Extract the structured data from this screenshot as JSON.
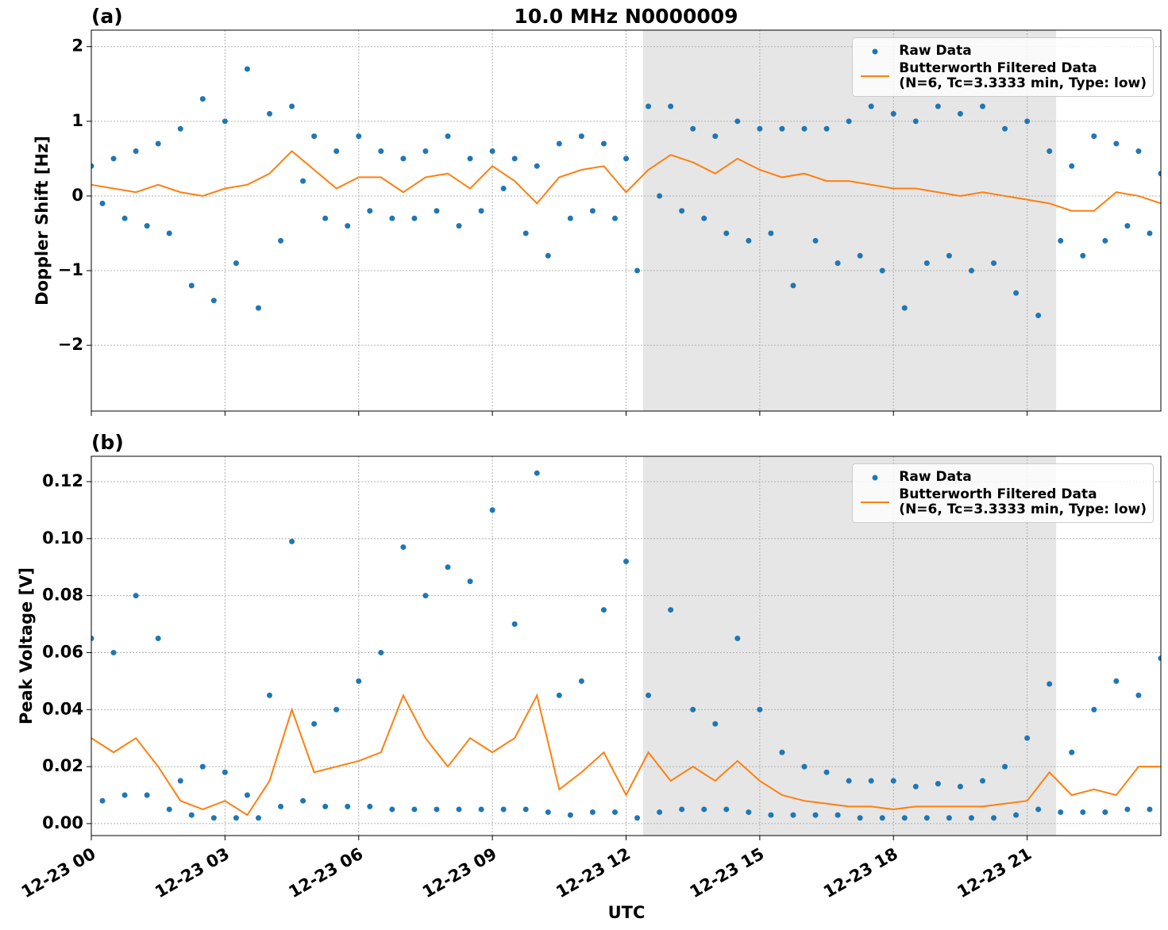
{
  "chart_data": [
    {
      "type": "scatter",
      "panel_label": "(a)",
      "title": "10.0 MHz N0000009",
      "ylabel": "Doppler Shift [Hz]",
      "xlim": [
        0,
        24
      ],
      "xticks": [
        0,
        3,
        6,
        9,
        12,
        15,
        18,
        21
      ],
      "ylim": [
        -2.88,
        2.22
      ],
      "yticks": [
        {
          "value": -2,
          "label": "−2"
        },
        {
          "value": -1,
          "label": "−1"
        },
        {
          "value": 0,
          "label": "0"
        },
        {
          "value": 1,
          "label": "1"
        },
        {
          "value": 2,
          "label": "2"
        }
      ],
      "grid": true,
      "shaded_span": [
        12.38,
        21.65
      ],
      "legend": "upper right",
      "series": [
        {
          "name": "Raw Data",
          "style": "markers",
          "color": "#1f77b4",
          "x": [
            0,
            0.25,
            0.5,
            0.75,
            1,
            1.25,
            1.5,
            1.75,
            2,
            2.25,
            2.5,
            2.75,
            3,
            3.25,
            3.5,
            3.75,
            4,
            4.25,
            4.5,
            4.75,
            5,
            5.25,
            5.5,
            5.75,
            6,
            6.25,
            6.5,
            6.75,
            7,
            7.25,
            7.5,
            7.75,
            8,
            8.25,
            8.5,
            8.75,
            9,
            9.25,
            9.5,
            9.75,
            10,
            10.25,
            10.5,
            10.75,
            11,
            11.25,
            11.5,
            11.75,
            12,
            12.25,
            12.5,
            12.75,
            13,
            13.25,
            13.5,
            13.75,
            14,
            14.25,
            14.5,
            14.75,
            15,
            15.25,
            15.5,
            15.75,
            16,
            16.25,
            16.5,
            16.75,
            17,
            17.25,
            17.5,
            17.75,
            18,
            18.25,
            18.5,
            18.75,
            19,
            19.25,
            19.5,
            19.75,
            20,
            20.25,
            20.5,
            20.75,
            21,
            21.25,
            21.5,
            21.75,
            22,
            22.25,
            22.5,
            22.75,
            23,
            23.25,
            23.5,
            23.75,
            24
          ],
          "values": [
            0.4,
            -0.1,
            0.5,
            -0.3,
            0.6,
            -0.4,
            0.7,
            -0.5,
            0.9,
            -1.2,
            1.3,
            -1.4,
            1.0,
            -0.9,
            1.7,
            -1.5,
            1.1,
            -0.6,
            1.2,
            0.2,
            0.8,
            -0.3,
            0.6,
            -0.4,
            0.8,
            -0.2,
            0.6,
            -0.3,
            0.5,
            -0.3,
            0.6,
            -0.2,
            0.8,
            -0.4,
            0.5,
            -0.2,
            0.6,
            0.1,
            0.5,
            -0.5,
            0.4,
            -0.8,
            0.7,
            -0.3,
            0.8,
            -0.2,
            0.7,
            -0.3,
            0.5,
            -1.0,
            1.2,
            0.0,
            1.2,
            -0.2,
            0.9,
            -0.3,
            0.8,
            -0.5,
            1.0,
            -0.6,
            0.9,
            -0.5,
            0.9,
            -1.2,
            0.9,
            -0.6,
            0.9,
            -0.9,
            1.0,
            -0.8,
            1.2,
            -1.0,
            1.1,
            -1.5,
            1.0,
            -0.9,
            1.2,
            -0.8,
            1.1,
            -1.0,
            1.2,
            -0.9,
            0.9,
            -1.3,
            1.0,
            -1.6,
            0.6,
            -0.6,
            0.4,
            -0.8,
            0.8,
            -0.6,
            0.7,
            -0.4,
            0.6,
            -0.5,
            0.3
          ]
        },
        {
          "name": "Butterworth Filtered Data\n(N=6, Tc=3.3333 min, Type: low)",
          "style": "line",
          "color": "#ff7f0e",
          "x": [
            0,
            0.5,
            1,
            1.5,
            2,
            2.5,
            3,
            3.5,
            4,
            4.5,
            5,
            5.5,
            6,
            6.5,
            7,
            7.5,
            8,
            8.5,
            9,
            9.5,
            10,
            10.5,
            11,
            11.5,
            12,
            12.5,
            13,
            13.5,
            14,
            14.5,
            15,
            15.5,
            16,
            16.5,
            17,
            17.5,
            18,
            18.5,
            19,
            19.5,
            20,
            20.5,
            21,
            21.5,
            22,
            22.5,
            23,
            23.5,
            24
          ],
          "values": [
            0.15,
            0.1,
            0.05,
            0.15,
            0.05,
            0.0,
            0.1,
            0.15,
            0.3,
            0.6,
            0.35,
            0.1,
            0.25,
            0.25,
            0.05,
            0.25,
            0.3,
            0.1,
            0.4,
            0.2,
            -0.1,
            0.25,
            0.35,
            0.4,
            0.05,
            0.35,
            0.55,
            0.45,
            0.3,
            0.5,
            0.35,
            0.25,
            0.3,
            0.2,
            0.2,
            0.15,
            0.1,
            0.1,
            0.05,
            0.0,
            0.05,
            0.0,
            -0.05,
            -0.1,
            -0.2,
            -0.2,
            0.05,
            0.0,
            -0.1
          ]
        }
      ]
    },
    {
      "type": "scatter",
      "panel_label": "(b)",
      "ylabel": "Peak Voltage [V]",
      "xlabel": "UTC",
      "xlim": [
        0,
        24
      ],
      "xticks": [
        {
          "value": 0,
          "label": "12-23 00"
        },
        {
          "value": 3,
          "label": "12-23 03"
        },
        {
          "value": 6,
          "label": "12-23 06"
        },
        {
          "value": 9,
          "label": "12-23 09"
        },
        {
          "value": 12,
          "label": "12-23 12"
        },
        {
          "value": 15,
          "label": "12-23 15"
        },
        {
          "value": 18,
          "label": "12-23 18"
        },
        {
          "value": 21,
          "label": "12-23 21"
        }
      ],
      "ylim": [
        -0.0042,
        0.1289
      ],
      "yticks": [
        {
          "value": 0,
          "label": "0.00"
        },
        {
          "value": 0.02,
          "label": "0.02"
        },
        {
          "value": 0.04,
          "label": "0.04"
        },
        {
          "value": 0.06,
          "label": "0.06"
        },
        {
          "value": 0.08,
          "label": "0.08"
        },
        {
          "value": 0.1,
          "label": "0.10"
        },
        {
          "value": 0.12,
          "label": "0.12"
        }
      ],
      "grid": true,
      "shaded_span": [
        12.38,
        21.65
      ],
      "legend": "upper right",
      "series": [
        {
          "name": "Raw Data",
          "style": "markers",
          "color": "#1f77b4",
          "x": [
            0,
            0.25,
            0.5,
            0.75,
            1,
            1.25,
            1.5,
            1.75,
            2,
            2.25,
            2.5,
            2.75,
            3,
            3.25,
            3.5,
            3.75,
            4,
            4.25,
            4.5,
            4.75,
            5,
            5.25,
            5.5,
            5.75,
            6,
            6.25,
            6.5,
            6.75,
            7,
            7.25,
            7.5,
            7.75,
            8,
            8.25,
            8.5,
            8.75,
            9,
            9.25,
            9.5,
            9.75,
            10,
            10.25,
            10.5,
            10.75,
            11,
            11.25,
            11.5,
            11.75,
            12,
            12.25,
            12.5,
            12.75,
            13,
            13.25,
            13.5,
            13.75,
            14,
            14.25,
            14.5,
            14.75,
            15,
            15.25,
            15.5,
            15.75,
            16,
            16.25,
            16.5,
            16.75,
            17,
            17.25,
            17.5,
            17.75,
            18,
            18.25,
            18.5,
            18.75,
            19,
            19.25,
            19.5,
            19.75,
            20,
            20.25,
            20.5,
            20.75,
            21,
            21.25,
            21.5,
            21.75,
            22,
            22.25,
            22.5,
            22.75,
            23,
            23.25,
            23.5,
            23.75,
            24
          ],
          "values": [
            0.065,
            0.008,
            0.06,
            0.01,
            0.08,
            0.01,
            0.065,
            0.005,
            0.015,
            0.003,
            0.02,
            0.002,
            0.018,
            0.002,
            0.01,
            0.002,
            0.045,
            0.006,
            0.099,
            0.008,
            0.035,
            0.006,
            0.04,
            0.006,
            0.05,
            0.006,
            0.06,
            0.005,
            0.097,
            0.005,
            0.08,
            0.005,
            0.09,
            0.005,
            0.085,
            0.005,
            0.11,
            0.005,
            0.07,
            0.005,
            0.123,
            0.004,
            0.045,
            0.003,
            0.05,
            0.004,
            0.075,
            0.004,
            0.092,
            0.002,
            0.045,
            0.004,
            0.075,
            0.005,
            0.04,
            0.005,
            0.035,
            0.005,
            0.065,
            0.004,
            0.04,
            0.003,
            0.025,
            0.003,
            0.02,
            0.003,
            0.018,
            0.003,
            0.015,
            0.002,
            0.015,
            0.002,
            0.015,
            0.002,
            0.013,
            0.002,
            0.014,
            0.002,
            0.013,
            0.002,
            0.015,
            0.002,
            0.02,
            0.003,
            0.03,
            0.005,
            0.049,
            0.004,
            0.025,
            0.004,
            0.04,
            0.004,
            0.05,
            0.005,
            0.045,
            0.005,
            0.058
          ]
        },
        {
          "name": "Butterworth Filtered Data\n(N=6, Tc=3.3333 min, Type: low)",
          "style": "line",
          "color": "#ff7f0e",
          "x": [
            0,
            0.5,
            1,
            1.5,
            2,
            2.5,
            3,
            3.5,
            4,
            4.5,
            5,
            5.5,
            6,
            6.5,
            7,
            7.5,
            8,
            8.5,
            9,
            9.5,
            10,
            10.5,
            11,
            11.5,
            12,
            12.5,
            13,
            13.5,
            14,
            14.5,
            15,
            15.5,
            16,
            16.5,
            17,
            17.5,
            18,
            18.5,
            19,
            19.5,
            20,
            20.5,
            21,
            21.5,
            22,
            22.5,
            23,
            23.5,
            24
          ],
          "values": [
            0.03,
            0.025,
            0.03,
            0.02,
            0.008,
            0.005,
            0.008,
            0.003,
            0.015,
            0.04,
            0.018,
            0.02,
            0.022,
            0.025,
            0.045,
            0.03,
            0.02,
            0.03,
            0.025,
            0.03,
            0.045,
            0.012,
            0.018,
            0.025,
            0.01,
            0.025,
            0.015,
            0.02,
            0.015,
            0.022,
            0.015,
            0.01,
            0.008,
            0.007,
            0.006,
            0.006,
            0.005,
            0.006,
            0.006,
            0.006,
            0.006,
            0.007,
            0.008,
            0.018,
            0.01,
            0.012,
            0.01,
            0.02,
            0.02
          ]
        }
      ]
    }
  ]
}
